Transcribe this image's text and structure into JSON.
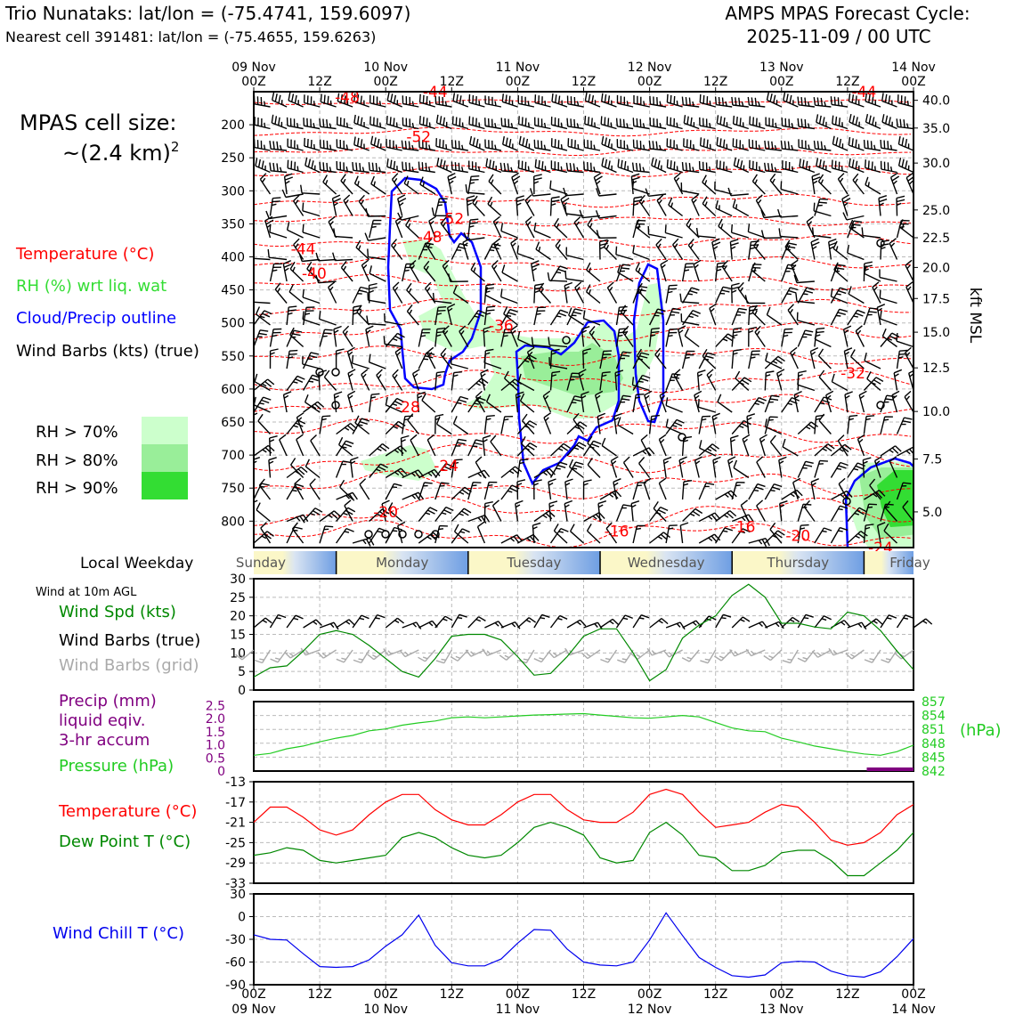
{
  "header": {
    "station": "Trio Nunataks: lat/lon = (-75.4741, 159.6097)",
    "nearest": "Nearest cell 391481: lat/lon = (-75.4655, 159.6263)",
    "cycle_line1": "AMPS MPAS Forecast Cycle:",
    "cycle_line2": "2025-11-09 / 00 UTC"
  },
  "legend": {
    "cell_size_line1": "MPAS cell size:",
    "cell_size_line2": "~(2.4 km)",
    "cell_size_sup": "2",
    "temperature": "Temperature (°C)",
    "rh": "RH (%) wrt liq. wat",
    "cloud": "Cloud/Precip outline",
    "barbs": "Wind Barbs (kts) (true)",
    "rh70": "RH > 70%",
    "rh80": "RH > 80%",
    "rh90": "RH > 90%",
    "local_weekday": "Local Weekday",
    "wind10m": "Wind at 10m AGL",
    "wind_spd": "Wind Spd (kts)",
    "wind_barbs_true": "Wind Barbs (true)",
    "wind_barbs_grid": "Wind Barbs (grid)",
    "precip1": "Precip (mm)",
    "precip2": "liquid eqiv.",
    "precip3": "3-hr accum",
    "pressure": "Pressure (hPa)",
    "pressure_unit": "(hPa)",
    "temp2": "Temperature (°C)",
    "dewpoint": "Dew Point T (°C)",
    "windchill": "Wind Chill T (°C)",
    "kft": "kft MSL"
  },
  "colors": {
    "temperature": "#ff0000",
    "rh": "#33dd33",
    "cloud": "#0000ff",
    "precip": "#800080",
    "pressure": "#22cc22",
    "dewpoint": "#008800",
    "windspd": "#008800",
    "windchill": "#0000ee",
    "rh70": "#ccffcc",
    "rh80": "#99ee99",
    "rh90": "#33dd33"
  },
  "chart_data": [
    {
      "type": "time-height cross-section",
      "time_ticks_top": [
        {
          "hour": 0,
          "line1": "09 Nov",
          "line2": "00Z"
        },
        {
          "hour": 12,
          "line1": "",
          "line2": "12Z"
        },
        {
          "hour": 24,
          "line1": "10 Nov",
          "line2": "00Z"
        },
        {
          "hour": 36,
          "line1": "",
          "line2": "12Z"
        },
        {
          "hour": 48,
          "line1": "11 Nov",
          "line2": "00Z"
        },
        {
          "hour": 60,
          "line1": "",
          "line2": "12Z"
        },
        {
          "hour": 72,
          "line1": "12 Nov",
          "line2": "00Z"
        },
        {
          "hour": 84,
          "line1": "",
          "line2": "12Z"
        },
        {
          "hour": 96,
          "line1": "13 Nov",
          "line2": "00Z"
        },
        {
          "hour": 108,
          "line1": "",
          "line2": "12Z"
        },
        {
          "hour": 120,
          "line1": "14 Nov",
          "line2": "00Z"
        }
      ],
      "pressure_ticks": [
        200,
        250,
        300,
        350,
        400,
        450,
        500,
        550,
        600,
        650,
        700,
        750,
        800
      ],
      "height_ticks_kft": [
        40.0,
        35.0,
        30.0,
        25.0,
        22.5,
        20.0,
        17.5,
        15.0,
        12.5,
        10.0,
        7.5,
        5.0
      ],
      "temperature_labels": [
        {
          "hour": 17,
          "p": 158,
          "text": "-48"
        },
        {
          "hour": 33,
          "p": 150,
          "text": "-44"
        },
        {
          "hour": 111,
          "p": 150,
          "text": "-44"
        },
        {
          "hour": 30,
          "p": 218,
          "text": "-52"
        },
        {
          "hour": 36,
          "p": 342,
          "text": "-52"
        },
        {
          "hour": 32,
          "p": 370,
          "text": "-48"
        },
        {
          "hour": 9,
          "p": 388,
          "text": "-44"
        },
        {
          "hour": 11,
          "p": 425,
          "text": "-40"
        },
        {
          "hour": 45,
          "p": 504,
          "text": "-36"
        },
        {
          "hour": 109,
          "p": 576,
          "text": "-32"
        },
        {
          "hour": 28,
          "p": 627,
          "text": "-28"
        },
        {
          "hour": 35,
          "p": 716,
          "text": "-24"
        },
        {
          "hour": 24,
          "p": 786,
          "text": "-20"
        },
        {
          "hour": 66,
          "p": 815,
          "text": "-16"
        },
        {
          "hour": 89,
          "p": 808,
          "text": "-16"
        },
        {
          "hour": 99,
          "p": 822,
          "text": "-20"
        },
        {
          "hour": 114,
          "p": 840,
          "text": "-24"
        }
      ],
      "rh_levels": [
        "RH > 70%",
        "RH > 80%",
        "RH > 90%"
      ]
    },
    {
      "type": "weekday band",
      "days": [
        "Sunday",
        "Monday",
        "Tuesday",
        "Wednesday",
        "Thursday",
        "Friday"
      ]
    },
    {
      "type": "line",
      "title": "Wind Spd (kts)",
      "x_hours": [
        0,
        3,
        6,
        9,
        12,
        15,
        18,
        21,
        24,
        27,
        30,
        33,
        36,
        39,
        42,
        45,
        48,
        51,
        54,
        57,
        60,
        63,
        66,
        69,
        72,
        75,
        78,
        81,
        84,
        87,
        90,
        93,
        96,
        99,
        102,
        105,
        108,
        111,
        114,
        117,
        120
      ],
      "values": [
        3.5,
        6,
        6.5,
        10.5,
        15,
        16,
        15,
        12,
        8.5,
        5,
        3.5,
        8.5,
        14.5,
        15,
        15,
        13.5,
        9,
        4,
        4.5,
        9,
        14.5,
        16.5,
        16.5,
        10,
        2.5,
        5.5,
        14,
        17.5,
        20,
        25.5,
        28.5,
        25,
        18,
        18,
        17,
        16.5,
        21,
        20,
        16,
        10.5,
        5.5
      ],
      "ylim": [
        0,
        30
      ],
      "yticks": [
        0,
        5,
        10,
        15,
        20,
        25,
        30
      ]
    },
    {
      "type": "line",
      "title": "Pressure (hPa)",
      "x_hours": [
        0,
        3,
        6,
        9,
        12,
        15,
        18,
        21,
        24,
        27,
        30,
        33,
        36,
        39,
        42,
        45,
        48,
        51,
        54,
        57,
        60,
        63,
        66,
        69,
        72,
        75,
        78,
        81,
        84,
        87,
        90,
        93,
        96,
        99,
        102,
        105,
        108,
        111,
        114,
        117,
        120
      ],
      "values": [
        845.4,
        845.8,
        846.8,
        847.4,
        848.3,
        849.1,
        849.7,
        850.7,
        851.1,
        851.9,
        852.4,
        852.8,
        853.5,
        853.7,
        853.5,
        853.7,
        853.9,
        854.1,
        854.2,
        854.3,
        854.4,
        854.1,
        853.8,
        853.5,
        853.4,
        853.7,
        854,
        853.7,
        852.5,
        851.3,
        850.7,
        850.5,
        849.1,
        848.3,
        847.4,
        846.8,
        846.2,
        845.7,
        845.4,
        846.2,
        847.6
      ],
      "precip_mm": [
        0,
        0,
        0,
        0,
        0,
        0,
        0,
        0,
        0,
        0,
        0,
        0,
        0,
        0,
        0,
        0,
        0,
        0,
        0,
        0,
        0,
        0,
        0,
        0,
        0,
        0,
        0,
        0,
        0,
        0,
        0,
        0,
        0,
        0,
        0,
        0,
        0,
        0,
        0.05,
        0.05,
        0
      ],
      "ylim": [
        842,
        857
      ],
      "yticks_right": [
        842,
        845,
        848,
        851,
        854,
        857
      ],
      "precip_ticks": [
        "0",
        "0.5",
        "1.0",
        "1.5",
        "2.0",
        "2.5"
      ]
    },
    {
      "type": "line",
      "title": "Temperature / Dew Point (°C)",
      "x_hours": [
        0,
        3,
        6,
        9,
        12,
        15,
        18,
        21,
        24,
        27,
        30,
        33,
        36,
        39,
        42,
        45,
        48,
        51,
        54,
        57,
        60,
        63,
        66,
        69,
        72,
        75,
        78,
        81,
        84,
        87,
        90,
        93,
        96,
        99,
        102,
        105,
        108,
        111,
        114,
        117,
        120
      ],
      "series": [
        {
          "name": "Temperature",
          "values": [
            -21,
            -18,
            -18,
            -20,
            -22.5,
            -23.5,
            -22.5,
            -19.5,
            -17,
            -15.5,
            -15.5,
            -18.5,
            -20.5,
            -21.5,
            -21.5,
            -19.5,
            -17,
            -15.5,
            -15.5,
            -18.5,
            -20.5,
            -21,
            -21,
            -19,
            -15.5,
            -14.5,
            -15.5,
            -19,
            -22,
            -21.5,
            -21,
            -19,
            -17.5,
            -18,
            -21,
            -24.5,
            -25.5,
            -25,
            -23,
            -19.5,
            -17.5
          ]
        },
        {
          "name": "Dew Point",
          "values": [
            -27.5,
            -27,
            -26,
            -26.5,
            -28.5,
            -29,
            -28.5,
            -28,
            -27.5,
            -24,
            -23,
            -24,
            -26,
            -27.5,
            -28,
            -27.5,
            -25,
            -22,
            -21,
            -22,
            -23.5,
            -28,
            -29,
            -28.5,
            -23,
            -21,
            -23.5,
            -27.5,
            -28,
            -30.5,
            -30.5,
            -29.5,
            -27,
            -26.5,
            -26.5,
            -28.5,
            -31.5,
            -31.5,
            -29,
            -26.5,
            -23
          ]
        }
      ],
      "ylim": [
        -33,
        -13
      ],
      "yticks": [
        -33,
        -29,
        -25,
        -21,
        -17,
        -13
      ]
    },
    {
      "type": "line",
      "title": "Wind Chill T (°C)",
      "x_hours": [
        0,
        3,
        6,
        9,
        12,
        15,
        18,
        21,
        24,
        27,
        30,
        33,
        36,
        39,
        42,
        45,
        48,
        51,
        54,
        57,
        60,
        63,
        66,
        69,
        72,
        75,
        78,
        81,
        84,
        87,
        90,
        93,
        96,
        99,
        102,
        105,
        108,
        111,
        114,
        117,
        120
      ],
      "values": [
        -24,
        -30,
        -31,
        -49,
        -66,
        -67,
        -66,
        -57,
        -39,
        -24,
        2,
        -38,
        -61,
        -65,
        -65,
        -56,
        -35,
        -17,
        -18,
        -43,
        -60,
        -64,
        -65,
        -60,
        -31,
        5,
        -25,
        -54,
        -67,
        -78,
        -80,
        -77,
        -61,
        -59,
        -60,
        -72,
        -78,
        -80,
        -73,
        -53,
        -29
      ],
      "ylim": [
        -90,
        30
      ],
      "yticks": [
        -90,
        -60,
        -30,
        0,
        30
      ],
      "xtick_labels_line1": [
        "00Z",
        "12Z",
        "00Z",
        "12Z",
        "00Z",
        "12Z",
        "00Z",
        "12Z",
        "00Z",
        "12Z",
        "00Z"
      ],
      "xtick_labels_line2": [
        "09 Nov",
        "",
        "10 Nov",
        "",
        "11 Nov",
        "",
        "12 Nov",
        "",
        "13 Nov",
        "",
        "14 Nov"
      ]
    }
  ]
}
